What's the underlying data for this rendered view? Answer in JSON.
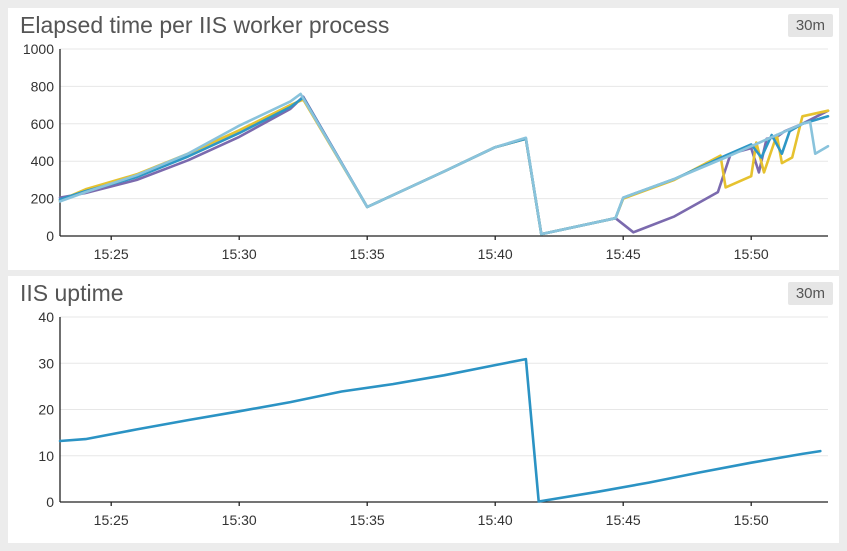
{
  "chart_data": [
    {
      "type": "line",
      "title": "Elapsed time per IIS worker process",
      "range_badge": "30m",
      "xlabel": "",
      "ylabel": "",
      "xlim": [
        "15:23",
        "15:53"
      ],
      "ylim": [
        0,
        1000
      ],
      "x_ticks": [
        "15:25",
        "15:30",
        "15:35",
        "15:40",
        "15:45",
        "15:50"
      ],
      "y_ticks": [
        0,
        200,
        400,
        600,
        800,
        1000
      ],
      "grid": true,
      "legend": "none",
      "series": [
        {
          "color": "#7b6aae",
          "points": [
            [
              "15:23",
              205
            ],
            [
              "15:24",
              230
            ],
            [
              "15:26",
              300
            ],
            [
              "15:28",
              405
            ],
            [
              "15:30",
              530
            ],
            [
              "15:32",
              680
            ],
            [
              "15:32.5",
              745
            ],
            [
              "15:35",
              155
            ],
            [
              "15:38",
              345
            ],
            [
              "15:40",
              475
            ],
            [
              "15:41.2",
              520
            ],
            [
              "15:41.8",
              10
            ],
            [
              "15:44.7",
              95
            ],
            [
              "15:45.4",
              20
            ],
            [
              "15:47",
              105
            ],
            [
              "15:48.7",
              235
            ],
            [
              "15:49.2",
              440
            ],
            [
              "15:50",
              470
            ],
            [
              "15:50.3",
              340
            ],
            [
              "15:50.6",
              520
            ],
            [
              "15:51",
              530
            ],
            [
              "15:51.3",
              560
            ],
            [
              "15:52",
              600
            ],
            [
              "15:53",
              670
            ]
          ]
        },
        {
          "color": "#e6c22f",
          "points": [
            [
              "15:23",
              190
            ],
            [
              "15:24",
              250
            ],
            [
              "15:26",
              330
            ],
            [
              "15:28",
              440
            ],
            [
              "15:30",
              565
            ],
            [
              "15:32",
              700
            ],
            [
              "15:32.5",
              730
            ],
            [
              "15:35",
              155
            ],
            [
              "15:38",
              345
            ],
            [
              "15:40",
              475
            ],
            [
              "15:41.2",
              520
            ],
            [
              "15:41.8",
              10
            ],
            [
              "15:44.7",
              95
            ],
            [
              "15:45",
              200
            ],
            [
              "15:47",
              300
            ],
            [
              "15:48.8",
              430
            ],
            [
              "15:49",
              260
            ],
            [
              "15:50",
              320
            ],
            [
              "15:50.2",
              500
            ],
            [
              "15:50.5",
              340
            ],
            [
              "15:51",
              540
            ],
            [
              "15:51.2",
              390
            ],
            [
              "15:51.6",
              420
            ],
            [
              "15:52",
              640
            ],
            [
              "15:53",
              670
            ]
          ]
        },
        {
          "color": "#2e97c5",
          "points": [
            [
              "15:23",
              195
            ],
            [
              "15:24",
              240
            ],
            [
              "15:26",
              315
            ],
            [
              "15:28",
              425
            ],
            [
              "15:30",
              550
            ],
            [
              "15:32",
              690
            ],
            [
              "15:32.5",
              740
            ],
            [
              "15:35",
              155
            ],
            [
              "15:38",
              345
            ],
            [
              "15:40",
              475
            ],
            [
              "15:41.2",
              520
            ],
            [
              "15:41.8",
              10
            ],
            [
              "15:44.7",
              95
            ],
            [
              "15:45",
              205
            ],
            [
              "15:47",
              305
            ],
            [
              "15:49",
              430
            ],
            [
              "15:50",
              490
            ],
            [
              "15:50.4",
              420
            ],
            [
              "15:50.8",
              540
            ],
            [
              "15:51.2",
              440
            ],
            [
              "15:51.5",
              560
            ],
            [
              "15:52",
              600
            ],
            [
              "15:53",
              640
            ]
          ]
        },
        {
          "color": "#89c3dc",
          "points": [
            [
              "15:23",
              185
            ],
            [
              "15:24",
              235
            ],
            [
              "15:26",
              325
            ],
            [
              "15:28",
              440
            ],
            [
              "15:30",
              590
            ],
            [
              "15:32",
              720
            ],
            [
              "15:32.4",
              760
            ],
            [
              "15:35",
              155
            ],
            [
              "15:38",
              345
            ],
            [
              "15:40",
              475
            ],
            [
              "15:41.2",
              525
            ],
            [
              "15:41.8",
              10
            ],
            [
              "15:44.7",
              95
            ],
            [
              "15:45",
              205
            ],
            [
              "15:47",
              305
            ],
            [
              "15:49",
              420
            ],
            [
              "15:50",
              480
            ],
            [
              "15:51",
              540
            ],
            [
              "15:52",
              600
            ],
            [
              "15:52.3",
              610
            ],
            [
              "15:52.5",
              440
            ],
            [
              "15:53",
              480
            ]
          ]
        }
      ]
    },
    {
      "type": "line",
      "title": "IIS uptime",
      "range_badge": "30m",
      "xlabel": "",
      "ylabel": "",
      "xlim": [
        "15:23",
        "15:53"
      ],
      "ylim": [
        0,
        40
      ],
      "x_ticks": [
        "15:25",
        "15:30",
        "15:35",
        "15:40",
        "15:45",
        "15:50"
      ],
      "y_ticks": [
        0,
        10,
        20,
        30,
        40
      ],
      "grid": true,
      "legend": "none",
      "series": [
        {
          "color": "#2b93c4",
          "points": [
            [
              "15:23",
              13.2
            ],
            [
              "15:24",
              13.6
            ],
            [
              "15:26",
              15.7
            ],
            [
              "15:28",
              17.7
            ],
            [
              "15:30",
              19.6
            ],
            [
              "15:32",
              21.6
            ],
            [
              "15:34",
              23.9
            ],
            [
              "15:36",
              25.5
            ],
            [
              "15:38",
              27.4
            ],
            [
              "15:40",
              29.6
            ],
            [
              "15:41.2",
              30.9
            ],
            [
              "15:41.7",
              0.1
            ],
            [
              "15:44",
              2.2
            ],
            [
              "15:46",
              4.2
            ],
            [
              "15:48",
              6.4
            ],
            [
              "15:50",
              8.5
            ],
            [
              "15:52",
              10.4
            ],
            [
              "15:52.7",
              11.0
            ]
          ]
        }
      ]
    }
  ]
}
